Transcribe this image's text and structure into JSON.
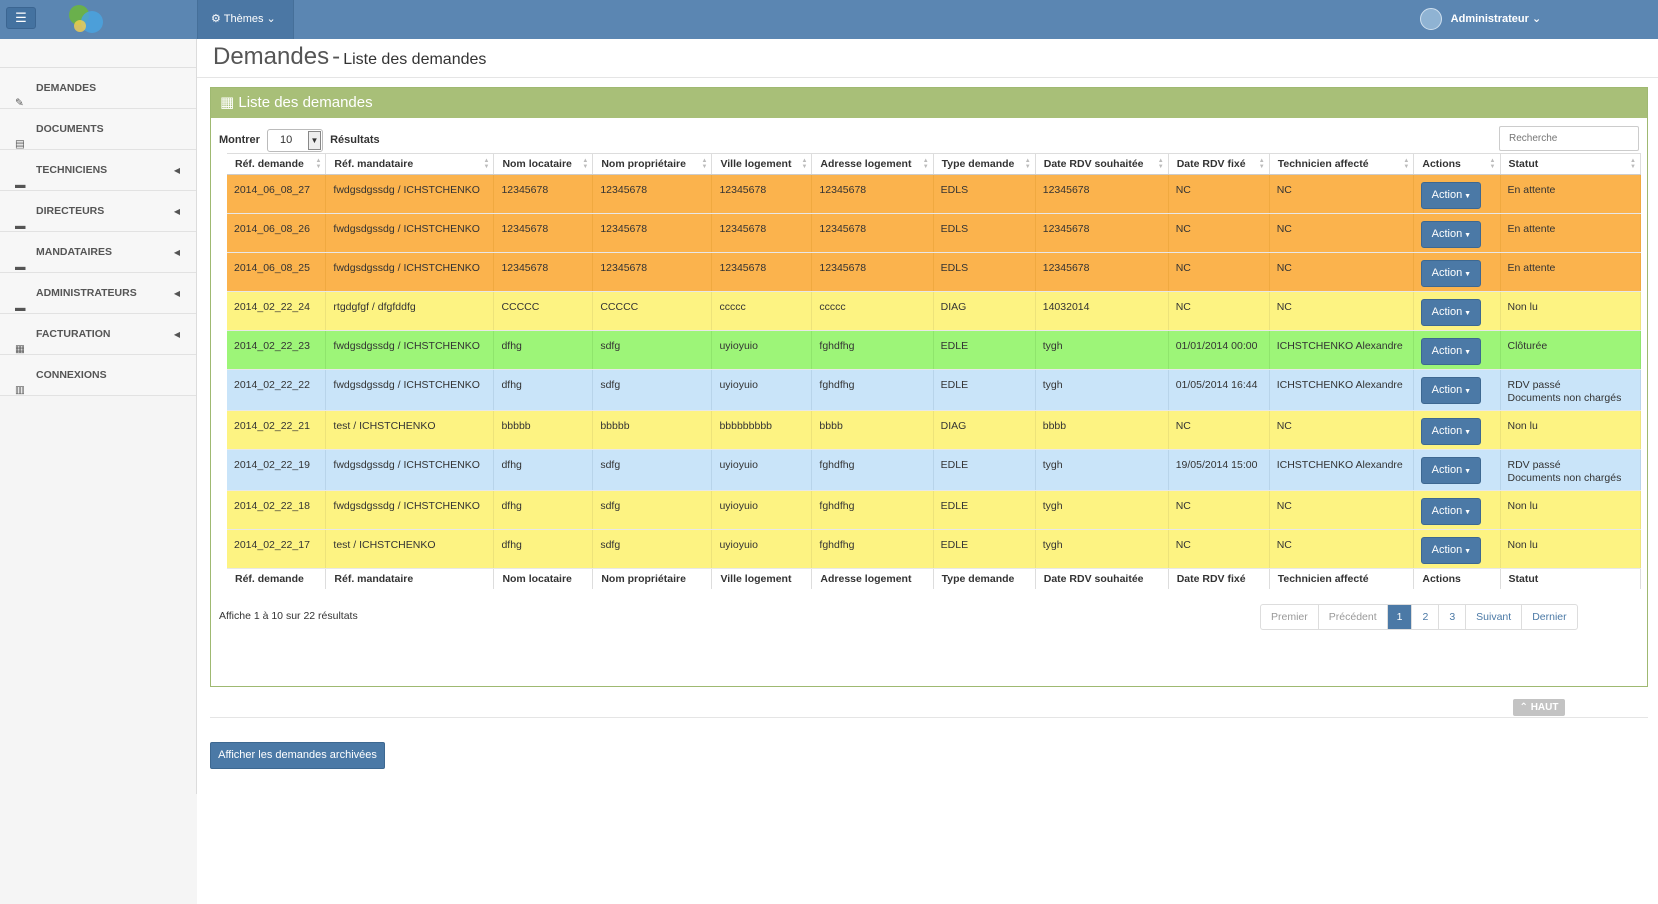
{
  "header": {
    "menu_icon": "☰",
    "themes_label": "Thèmes",
    "user_label": "Administrateur"
  },
  "sidebar": {
    "items": [
      {
        "label": "DEMANDES",
        "icon": "edit-icon",
        "submenu": false
      },
      {
        "label": "DOCUMENTS",
        "icon": "file-icon",
        "submenu": false
      },
      {
        "label": "TECHNICIENS",
        "icon": "briefcase-icon",
        "submenu": true
      },
      {
        "label": "DIRECTEURS",
        "icon": "briefcase-icon",
        "submenu": true
      },
      {
        "label": "MANDATAIRES",
        "icon": "briefcase-icon",
        "submenu": true
      },
      {
        "label": "ADMINISTRATEURS",
        "icon": "briefcase-icon",
        "submenu": true
      },
      {
        "label": "FACTURATION",
        "icon": "table-icon",
        "submenu": true
      },
      {
        "label": "CONNEXIONS",
        "icon": "bar-chart-icon",
        "submenu": false
      }
    ]
  },
  "page": {
    "title": "Demandes",
    "separator": "-",
    "subtitle": "Liste des demandes"
  },
  "box": {
    "title": "Liste des demandes",
    "show_label": "Montrer",
    "show_value": "10",
    "results_label": "Résultats",
    "search_placeholder": "Recherche",
    "info": "Affiche 1 à 10 sur 22 résultats"
  },
  "table": {
    "columns": [
      "Réf. demande",
      "Réf. mandataire",
      "Nom locataire",
      "Nom propriétaire",
      "Ville logement",
      "Adresse logement",
      "Type demande",
      "Date RDV souhaitée",
      "Date RDV fixé",
      "Technicien affecté",
      "Actions",
      "Statut"
    ],
    "action_label": "Action",
    "rows": [
      {
        "color": "orange",
        "cells": [
          "2014_06_08_27",
          "fwdgsdgssdg / ICHSTCHENKO",
          "12345678",
          "12345678",
          "12345678",
          "12345678",
          "EDLS",
          "12345678",
          "NC",
          "NC"
        ],
        "status": [
          "En attente"
        ]
      },
      {
        "color": "orange",
        "cells": [
          "2014_06_08_26",
          "fwdgsdgssdg / ICHSTCHENKO",
          "12345678",
          "12345678",
          "12345678",
          "12345678",
          "EDLS",
          "12345678",
          "NC",
          "NC"
        ],
        "status": [
          "En attente"
        ]
      },
      {
        "color": "orange",
        "cells": [
          "2014_06_08_25",
          "fwdgsdgssdg / ICHSTCHENKO",
          "12345678",
          "12345678",
          "12345678",
          "12345678",
          "EDLS",
          "12345678",
          "NC",
          "NC"
        ],
        "status": [
          "En attente"
        ]
      },
      {
        "color": "yellow",
        "cells": [
          "2014_02_22_24",
          "rtgdgfgf / dfgfddfg",
          "CCCCC",
          "CCCCC",
          "ccccc",
          "ccccc",
          "DIAG",
          "14032014",
          "NC",
          "NC"
        ],
        "status": [
          "Non lu"
        ]
      },
      {
        "color": "green",
        "cells": [
          "2014_02_22_23",
          "fwdgsdgssdg / ICHSTCHENKO",
          "dfhg",
          "sdfg",
          "uyioyuio",
          "fghdfhg",
          "EDLE",
          "tygh",
          "01/01/2014 00:00",
          "ICHSTCHENKO Alexandre"
        ],
        "status": [
          "Clôturée"
        ]
      },
      {
        "color": "blue",
        "cells": [
          "2014_02_22_22",
          "fwdgsdgssdg / ICHSTCHENKO",
          "dfhg",
          "sdfg",
          "uyioyuio",
          "fghdfhg",
          "EDLE",
          "tygh",
          "01/05/2014 16:44",
          "ICHSTCHENKO Alexandre"
        ],
        "status": [
          "RDV passé",
          "Documents non chargés"
        ]
      },
      {
        "color": "yellow",
        "cells": [
          "2014_02_22_21",
          "test / ICHSTCHENKO",
          "bbbbb",
          "bbbbb",
          "bbbbbbbbb",
          "bbbb",
          "DIAG",
          "bbbb",
          "NC",
          "NC"
        ],
        "status": [
          "Non lu"
        ]
      },
      {
        "color": "blue",
        "cells": [
          "2014_02_22_19",
          "fwdgsdgssdg / ICHSTCHENKO",
          "dfhg",
          "sdfg",
          "uyioyuio",
          "fghdfhg",
          "EDLE",
          "tygh",
          "19/05/2014 15:00",
          "ICHSTCHENKO Alexandre"
        ],
        "status": [
          "RDV passé",
          "Documents non chargés"
        ]
      },
      {
        "color": "yellow",
        "cells": [
          "2014_02_22_18",
          "fwdgsdgssdg / ICHSTCHENKO",
          "dfhg",
          "sdfg",
          "uyioyuio",
          "fghdfhg",
          "EDLE",
          "tygh",
          "NC",
          "NC"
        ],
        "status": [
          "Non lu"
        ]
      },
      {
        "color": "yellow",
        "cells": [
          "2014_02_22_17",
          "test / ICHSTCHENKO",
          "dfhg",
          "sdfg",
          "uyioyuio",
          "fghdfhg",
          "EDLE",
          "tygh",
          "NC",
          "NC"
        ],
        "status": [
          "Non lu"
        ]
      }
    ]
  },
  "pagination": {
    "first": "Premier",
    "prev": "Précédent",
    "pages": [
      "1",
      "2",
      "3"
    ],
    "current": "1",
    "next": "Suivant",
    "last": "Dernier"
  },
  "footer": {
    "archive_button": "Afficher les demandes archivées",
    "top_button": "HAUT"
  }
}
